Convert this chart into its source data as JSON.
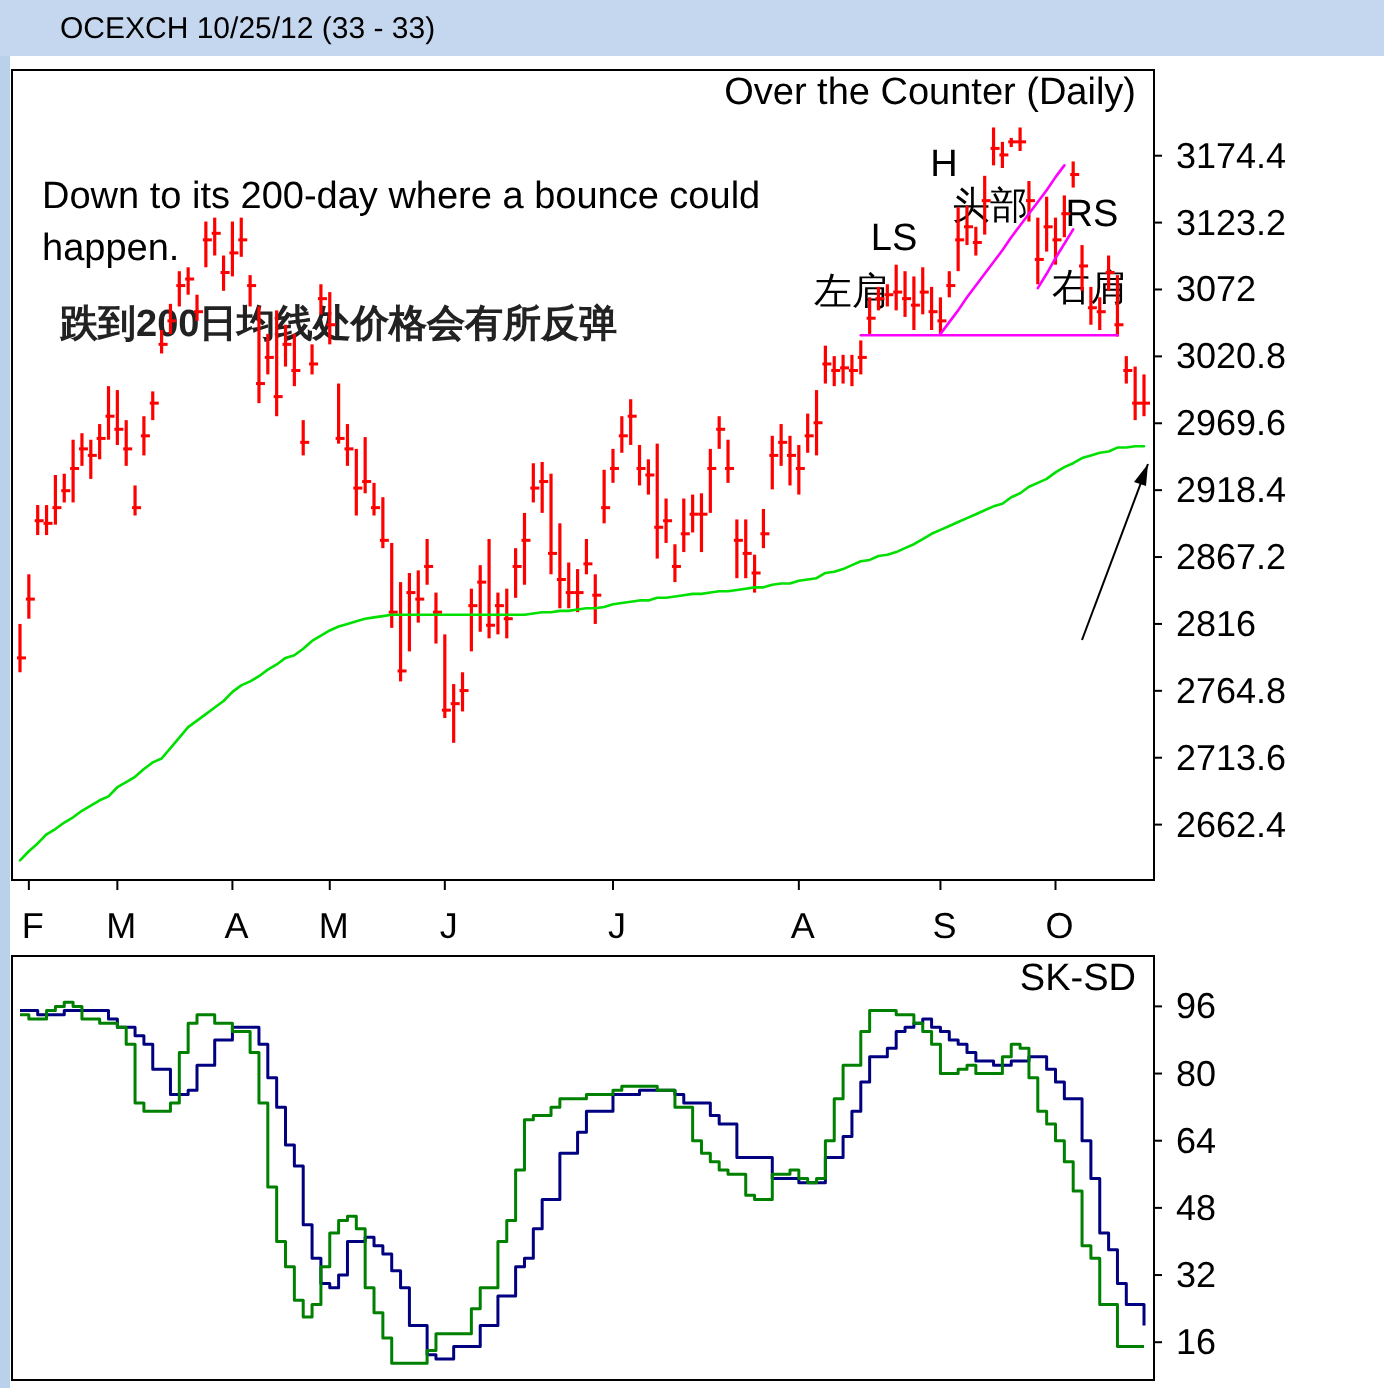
{
  "chart_data": [
    {
      "type": "candlestick",
      "title": "Over the Counter (Daily)",
      "color": "#ff0000",
      "categories": [
        null,
        "F",
        null,
        null,
        null,
        null,
        null,
        null,
        null,
        null,
        null,
        "M",
        null,
        null,
        null,
        null,
        null,
        null,
        null,
        null,
        null,
        null,
        null,
        null,
        "A",
        null,
        null,
        null,
        null,
        null,
        null,
        null,
        null,
        null,
        null,
        "M",
        null,
        null,
        null,
        null,
        null,
        null,
        null,
        null,
        null,
        null,
        null,
        null,
        "J",
        null,
        null,
        null,
        null,
        null,
        null,
        null,
        null,
        null,
        null,
        null,
        null,
        null,
        null,
        null,
        null,
        null,
        null,
        "J",
        null,
        null,
        null,
        null,
        null,
        null,
        null,
        null,
        null,
        null,
        null,
        null,
        null,
        null,
        null,
        null,
        null,
        null,
        null,
        null,
        "A",
        null,
        null,
        null,
        null,
        null,
        null,
        null,
        null,
        null,
        null,
        null,
        null,
        null,
        null,
        null,
        "S",
        null,
        null,
        null,
        null,
        null,
        null,
        null,
        null,
        null,
        null,
        null,
        null,
        "O",
        null,
        null,
        null,
        null,
        null,
        null,
        null,
        null,
        null,
        null
      ],
      "ohlc": [
        [
          2790,
          2816,
          2779,
          2790
        ],
        [
          2835,
          2854,
          2820,
          2835
        ],
        [
          2895,
          2907,
          2884,
          2895
        ],
        [
          2893,
          2907,
          2884,
          2893
        ],
        [
          2905,
          2930,
          2892,
          2905
        ],
        [
          2918,
          2931,
          2909,
          2918
        ],
        [
          2935,
          2957,
          2909,
          2935
        ],
        [
          2950,
          2962,
          2937,
          2950
        ],
        [
          2945,
          2957,
          2927,
          2945
        ],
        [
          2958,
          2969,
          2942,
          2958
        ],
        [
          2975,
          2998,
          2957,
          2975
        ],
        [
          2965,
          2995,
          2953,
          2965
        ],
        [
          2950,
          2972,
          2937,
          2950
        ],
        [
          2905,
          2922,
          2899,
          2905
        ],
        [
          2960,
          2975,
          2945,
          2960
        ],
        [
          2985,
          2994,
          2972,
          2985
        ],
        [
          3030,
          3041,
          3023,
          3030
        ],
        [
          3048,
          3061,
          3038,
          3048
        ],
        [
          3075,
          3086,
          3059,
          3075
        ],
        [
          3080,
          3089,
          3068,
          3080
        ],
        [
          3055,
          3068,
          3048,
          3055
        ],
        [
          3110,
          3124,
          3089,
          3110
        ],
        [
          3115,
          3127,
          3098,
          3115
        ],
        [
          3085,
          3098,
          3071,
          3085
        ],
        [
          3100,
          3124,
          3082,
          3100
        ],
        [
          3110,
          3127,
          3097,
          3110
        ],
        [
          3075,
          3083,
          3059,
          3075
        ],
        [
          3000,
          3059,
          2985,
          3000
        ],
        [
          3020,
          3038,
          3007,
          3020
        ],
        [
          2990,
          3056,
          2975,
          2990
        ],
        [
          3030,
          3045,
          3013,
          3030
        ],
        [
          3010,
          3038,
          2998,
          3010
        ],
        [
          2955,
          2972,
          2945,
          2955
        ],
        [
          3015,
          3030,
          3007,
          3015
        ],
        [
          3065,
          3076,
          3053,
          3065
        ],
        [
          3045,
          3070,
          3030,
          3045
        ],
        [
          2958,
          3000,
          2954,
          2958
        ],
        [
          2950,
          2969,
          2937,
          2950
        ],
        [
          2920,
          2950,
          2899,
          2920
        ],
        [
          2925,
          2959,
          2916,
          2925
        ],
        [
          2905,
          2924,
          2899,
          2905
        ],
        [
          2880,
          2913,
          2874,
          2880
        ],
        [
          2825,
          2878,
          2813,
          2825
        ],
        [
          2780,
          2848,
          2772,
          2780
        ],
        [
          2840,
          2855,
          2795,
          2840
        ],
        [
          2835,
          2857,
          2817,
          2835
        ],
        [
          2860,
          2881,
          2846,
          2860
        ],
        [
          2825,
          2840,
          2801,
          2825
        ],
        [
          2750,
          2808,
          2744,
          2750
        ],
        [
          2755,
          2770,
          2725,
          2755
        ],
        [
          2765,
          2779,
          2749,
          2765
        ],
        [
          2830,
          2843,
          2795,
          2830
        ],
        [
          2848,
          2861,
          2810,
          2848
        ],
        [
          2815,
          2881,
          2805,
          2815
        ],
        [
          2830,
          2840,
          2808,
          2830
        ],
        [
          2820,
          2843,
          2805,
          2820
        ],
        [
          2860,
          2874,
          2836,
          2860
        ],
        [
          2880,
          2901,
          2846,
          2880
        ],
        [
          2920,
          2939,
          2909,
          2920
        ],
        [
          2925,
          2940,
          2901,
          2925
        ],
        [
          2870,
          2931,
          2854,
          2870
        ],
        [
          2850,
          2893,
          2828,
          2850
        ],
        [
          2840,
          2863,
          2828,
          2840
        ],
        [
          2840,
          2858,
          2825,
          2840
        ],
        [
          2862,
          2881,
          2854,
          2862
        ],
        [
          2838,
          2854,
          2816,
          2838
        ],
        [
          2905,
          2934,
          2893,
          2905
        ],
        [
          2935,
          2950,
          2924,
          2935
        ],
        [
          2960,
          2975,
          2947,
          2960
        ],
        [
          2975,
          2988,
          2953,
          2975
        ],
        [
          2935,
          2953,
          2922,
          2935
        ],
        [
          2930,
          2942,
          2915,
          2930
        ],
        [
          2890,
          2954,
          2866,
          2890
        ],
        [
          2895,
          2912,
          2878,
          2895
        ],
        [
          2860,
          2877,
          2848,
          2860
        ],
        [
          2885,
          2912,
          2871,
          2885
        ],
        [
          2900,
          2915,
          2886,
          2900
        ],
        [
          2900,
          2916,
          2871,
          2900
        ],
        [
          2935,
          2950,
          2901,
          2935
        ],
        [
          2965,
          2975,
          2950,
          2965
        ],
        [
          2935,
          2957,
          2924,
          2935
        ],
        [
          2880,
          2896,
          2851,
          2880
        ],
        [
          2870,
          2896,
          2851,
          2870
        ],
        [
          2855,
          2869,
          2840,
          2855
        ],
        [
          2885,
          2904,
          2874,
          2885
        ],
        [
          2945,
          2960,
          2919,
          2945
        ],
        [
          2955,
          2969,
          2937,
          2955
        ],
        [
          2945,
          2960,
          2922,
          2945
        ],
        [
          2935,
          2953,
          2915,
          2935
        ],
        [
          2960,
          2977,
          2947,
          2960
        ],
        [
          2970,
          2995,
          2945,
          2970
        ],
        [
          3015,
          3029,
          3000,
          3015
        ],
        [
          3010,
          3021,
          2998,
          3010
        ],
        [
          3012,
          3022,
          3000,
          3012
        ],
        [
          3010,
          3022,
          2998,
          3010
        ],
        [
          3020,
          3033,
          3007,
          3020
        ],
        [
          3050,
          3066,
          3038,
          3050
        ],
        [
          3065,
          3074,
          3056,
          3065
        ],
        [
          3068,
          3076,
          3059,
          3068
        ],
        [
          3070,
          3091,
          3056,
          3070
        ],
        [
          3065,
          3086,
          3051,
          3065
        ],
        [
          3060,
          3082,
          3041,
          3060
        ],
        [
          3070,
          3089,
          3053,
          3070
        ],
        [
          3055,
          3074,
          3041,
          3055
        ],
        [
          3048,
          3066,
          3038,
          3048
        ],
        [
          3075,
          3086,
          3066,
          3075
        ],
        [
          3110,
          3135,
          3086,
          3110
        ],
        [
          3120,
          3136,
          3106,
          3120
        ],
        [
          3108,
          3120,
          3098,
          3108
        ],
        [
          3140,
          3159,
          3114,
          3140
        ],
        [
          3180,
          3196,
          3167,
          3180
        ],
        [
          3175,
          3185,
          3165,
          3175
        ],
        [
          3185,
          3188,
          3181,
          3185
        ],
        [
          3185,
          3196,
          3178,
          3185
        ],
        [
          3140,
          3155,
          3124,
          3140
        ],
        [
          3095,
          3127,
          3076,
          3095
        ],
        [
          3120,
          3143,
          3101,
          3120
        ],
        [
          3110,
          3127,
          3091,
          3110
        ],
        [
          3130,
          3144,
          3112,
          3130
        ],
        [
          3160,
          3170,
          3150,
          3160
        ],
        [
          3090,
          3106,
          3071,
          3090
        ],
        [
          3058,
          3074,
          3045,
          3058
        ],
        [
          3055,
          3066,
          3041,
          3055
        ],
        [
          3085,
          3098,
          3071,
          3085
        ],
        [
          3045,
          3083,
          3036,
          3045
        ],
        [
          3010,
          3021,
          3000,
          3010
        ],
        [
          2985,
          3013,
          2972,
          2985
        ],
        [
          2985,
          3007,
          2975,
          2985
        ]
      ],
      "series": [
        {
          "type": "line",
          "color": "#00e000",
          "values": [
            2635,
            2642,
            2648,
            2655,
            2659,
            2664,
            2668,
            2673,
            2677,
            2681,
            2684,
            2691,
            2695,
            2699,
            2705,
            2710,
            2713,
            2721,
            2729,
            2737,
            2742,
            2747,
            2752,
            2757,
            2764,
            2769,
            2772,
            2776,
            2781,
            2785,
            2790,
            2792,
            2797,
            2803,
            2807,
            2811,
            2814,
            2816,
            2818,
            2820,
            2821,
            2822,
            2823,
            2823,
            2823,
            2823,
            2823,
            2823,
            2823,
            2823,
            2823,
            2823,
            2823,
            2823,
            2823,
            2823,
            2823,
            2823,
            2824,
            2825,
            2825,
            2826,
            2826,
            2827,
            2828,
            2828,
            2829,
            2831,
            2832,
            2833,
            2834,
            2834,
            2836,
            2836,
            2837,
            2838,
            2839,
            2839,
            2840,
            2841,
            2841,
            2842,
            2843,
            2844,
            2844,
            2846,
            2847,
            2847,
            2849,
            2850,
            2851,
            2855,
            2856,
            2858,
            2861,
            2864,
            2865,
            2868,
            2869,
            2871,
            2874,
            2877,
            2881,
            2885,
            2888,
            2891,
            2894,
            2897,
            2900,
            2903,
            2906,
            2908,
            2913,
            2916,
            2921,
            2924,
            2927,
            2932,
            2936,
            2939,
            2943,
            2945,
            2947,
            2948,
            2951,
            2951,
            2952,
            2952
          ]
        },
        {
          "type": "line",
          "color": "#ff00ff",
          "values": [
            null,
            null,
            null,
            null,
            null,
            null,
            null,
            null,
            null,
            null,
            null,
            null,
            null,
            null,
            null,
            null,
            null,
            null,
            null,
            null,
            null,
            null,
            null,
            null,
            null,
            null,
            null,
            null,
            null,
            null,
            null,
            null,
            null,
            null,
            null,
            null,
            null,
            null,
            null,
            null,
            null,
            null,
            null,
            null,
            null,
            null,
            null,
            null,
            null,
            null,
            null,
            null,
            null,
            null,
            null,
            null,
            null,
            null,
            null,
            null,
            null,
            null,
            null,
            null,
            null,
            null,
            null,
            null,
            null,
            null,
            null,
            null,
            null,
            null,
            null,
            null,
            null,
            null,
            null,
            null,
            null,
            null,
            null,
            null,
            null,
            null,
            null,
            null,
            null,
            null,
            null,
            null,
            null,
            null,
            null,
            3037,
            3037,
            3037,
            3037,
            3037,
            3037,
            3037,
            3037,
            3037,
            3037,
            3037,
            3037,
            3037,
            3037,
            3037,
            3037,
            3037,
            3037,
            3037,
            3037,
            3037,
            3037,
            3037,
            3037,
            3037,
            3037,
            3037,
            3037,
            3037,
            3037,
            null,
            null,
            null
          ]
        },
        {
          "type": "line",
          "color": "#ff00ff",
          "values": [
            null,
            null,
            null,
            null,
            null,
            null,
            null,
            null,
            null,
            null,
            null,
            null,
            null,
            null,
            null,
            null,
            null,
            null,
            null,
            null,
            null,
            null,
            null,
            null,
            null,
            null,
            null,
            null,
            null,
            null,
            null,
            null,
            null,
            null,
            null,
            null,
            null,
            null,
            null,
            null,
            null,
            null,
            null,
            null,
            null,
            null,
            null,
            null,
            null,
            null,
            null,
            null,
            null,
            null,
            null,
            null,
            null,
            null,
            null,
            null,
            null,
            null,
            null,
            null,
            null,
            null,
            null,
            null,
            null,
            null,
            null,
            null,
            null,
            null,
            null,
            null,
            null,
            null,
            null,
            null,
            null,
            null,
            null,
            null,
            null,
            null,
            null,
            null,
            null,
            null,
            null,
            null,
            null,
            null,
            null,
            null,
            null,
            null,
            null,
            null,
            null,
            null,
            null,
            null,
            3038,
            3047,
            3056,
            3066,
            3075,
            3084,
            3093,
            3102,
            3112,
            3121,
            3130,
            3139,
            3148,
            3158,
            3167,
            null,
            null,
            null,
            null,
            null,
            null,
            null,
            null,
            null
          ]
        },
        {
          "type": "line",
          "color": "#ff00ff",
          "values": [
            null,
            null,
            null,
            null,
            null,
            null,
            null,
            null,
            null,
            null,
            null,
            null,
            null,
            null,
            null,
            null,
            null,
            null,
            null,
            null,
            null,
            null,
            null,
            null,
            null,
            null,
            null,
            null,
            null,
            null,
            null,
            null,
            null,
            null,
            null,
            null,
            null,
            null,
            null,
            null,
            null,
            null,
            null,
            null,
            null,
            null,
            null,
            null,
            null,
            null,
            null,
            null,
            null,
            null,
            null,
            null,
            null,
            null,
            null,
            null,
            null,
            null,
            null,
            null,
            null,
            null,
            null,
            null,
            null,
            null,
            null,
            null,
            null,
            null,
            null,
            null,
            null,
            null,
            null,
            null,
            null,
            null,
            null,
            null,
            null,
            null,
            null,
            null,
            null,
            null,
            null,
            null,
            null,
            null,
            null,
            null,
            null,
            null,
            null,
            null,
            null,
            null,
            null,
            null,
            null,
            null,
            null,
            null,
            null,
            null,
            null,
            null,
            null,
            null,
            null,
            3073,
            3084,
            3096,
            3107,
            3118,
            null,
            null,
            null,
            null,
            null,
            null,
            null,
            null
          ]
        }
      ],
      "ylim": [
        2620,
        3240
      ],
      "yticks": [
        3174.4,
        3123.2,
        3072,
        3020.8,
        2969.6,
        2918.4,
        2867.2,
        2816,
        2764.8,
        2713.6,
        2662.4
      ],
      "annotations": [
        "OCEXCH 10/25/12 (33 - 33)",
        "Down to its 200-day where a bounce could happen.",
        "跌到200日均线处价格会有所反弹",
        "LS",
        "左肩",
        "H",
        "头部",
        "RS",
        "右肩"
      ]
    },
    {
      "type": "step",
      "title": "SK-SD",
      "tick_labels": "y",
      "categories": [
        null,
        null,
        null,
        null,
        null,
        null,
        null,
        null,
        null,
        null,
        null,
        null,
        null,
        null,
        null,
        null,
        null,
        null,
        null,
        null,
        null,
        null,
        null,
        null,
        null,
        null,
        null,
        null,
        null,
        null,
        null,
        null,
        null,
        null,
        null,
        null,
        null,
        null,
        null,
        null,
        null,
        null,
        null,
        null,
        null,
        null,
        null,
        null,
        null,
        null,
        null,
        null,
        null,
        null,
        null,
        null,
        null,
        null,
        null,
        null,
        null,
        null,
        null,
        null,
        null,
        null,
        null,
        null,
        null,
        null,
        null,
        null,
        null,
        null,
        null,
        null,
        null,
        null,
        null,
        null,
        null,
        null,
        null,
        null,
        null,
        null,
        null,
        null,
        null,
        null,
        null,
        null,
        null,
        null,
        null,
        null,
        null,
        null,
        null,
        null,
        null,
        null,
        null,
        null,
        null,
        null,
        null,
        null,
        null,
        null,
        null,
        null,
        null,
        null,
        null,
        null,
        null,
        null,
        null,
        null,
        null,
        null,
        null,
        null,
        null,
        null,
        null,
        null
      ],
      "series": [
        {
          "color": "#000080",
          "values": [
            95,
            95,
            94,
            94,
            94,
            95,
            95,
            95,
            95,
            95,
            93,
            91,
            91,
            89,
            87,
            81,
            81,
            75,
            75,
            76,
            82,
            82,
            88,
            88,
            91,
            91,
            91,
            87,
            79,
            72,
            63,
            58,
            44,
            36,
            30,
            29,
            32,
            40,
            40,
            41,
            39,
            37,
            33,
            29,
            20,
            20,
            13,
            12,
            12,
            15,
            15,
            15,
            20,
            20,
            27,
            27,
            34,
            36,
            43,
            50,
            50,
            61,
            61,
            66,
            71,
            71,
            71,
            75,
            75,
            75,
            76,
            76,
            76,
            76,
            75,
            73,
            73,
            73,
            70,
            68,
            68,
            60,
            60,
            60,
            60,
            55,
            55,
            55,
            54,
            54,
            54,
            60,
            60,
            65,
            71,
            78,
            84,
            84,
            86,
            90,
            91,
            92,
            93,
            91,
            90,
            88,
            87,
            85,
            83,
            83,
            82,
            82,
            83,
            83,
            84,
            84,
            81,
            78,
            74,
            74,
            64,
            55,
            42,
            38,
            30,
            25,
            25,
            20
          ]
        },
        {
          "color": "#008000",
          "values": [
            94,
            93,
            93,
            95,
            96,
            97,
            96,
            93,
            93,
            92,
            92,
            91,
            87,
            73,
            71,
            71,
            71,
            73,
            85,
            92,
            94,
            94,
            92,
            92,
            90,
            90,
            85,
            73,
            53,
            40,
            34,
            26,
            22,
            25,
            34,
            42,
            45,
            46,
            43,
            29,
            23,
            17,
            11,
            11,
            11,
            11,
            14,
            18,
            18,
            18,
            18,
            24,
            29,
            29,
            40,
            45,
            57,
            69,
            70,
            70,
            72,
            74,
            74,
            74,
            75,
            75,
            75,
            76,
            77,
            77,
            77,
            77,
            76,
            76,
            72,
            72,
            64,
            61,
            59,
            57,
            56,
            56,
            51,
            50,
            50,
            56,
            56,
            57,
            55,
            54,
            55,
            64,
            74,
            82,
            82,
            90,
            95,
            95,
            95,
            94,
            94,
            92,
            90,
            87,
            80,
            80,
            81,
            82,
            80,
            80,
            80,
            84,
            87,
            86,
            79,
            71,
            68,
            64,
            59,
            52,
            39,
            36,
            25,
            25,
            15,
            15,
            15,
            15
          ]
        }
      ],
      "ylim": [
        7,
        108
      ],
      "yticks": [
        96,
        80,
        64,
        48,
        32,
        16
      ]
    }
  ]
}
